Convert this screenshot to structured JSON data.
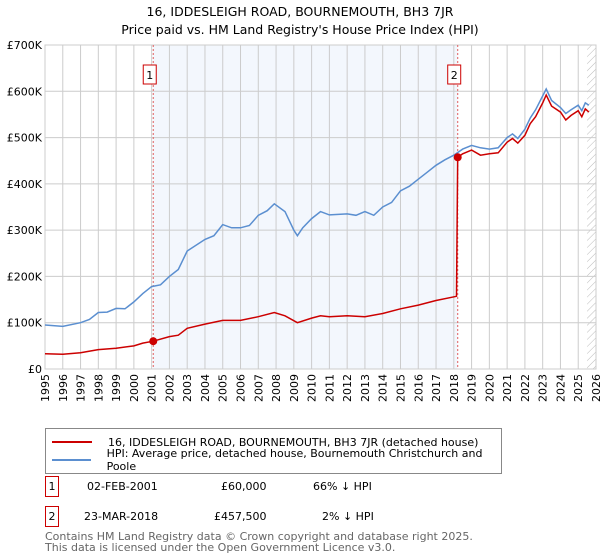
{
  "chart_data": {
    "type": "line",
    "title": "16, IDDESLEIGH ROAD, BOURNEMOUTH, BH3 7JR",
    "subtitle": "Price paid vs. HM Land Registry's House Price Index (HPI)",
    "xlim": [
      1995,
      2026
    ],
    "ylim": [
      0,
      700000
    ],
    "x_ticks": [
      "1995",
      "1996",
      "1997",
      "1998",
      "1999",
      "2000",
      "2001",
      "2002",
      "2003",
      "2004",
      "2005",
      "2006",
      "2007",
      "2008",
      "2009",
      "2010",
      "2011",
      "2012",
      "2013",
      "2014",
      "2015",
      "2016",
      "2017",
      "2018",
      "2019",
      "2020",
      "2021",
      "2022",
      "2023",
      "2024",
      "2025",
      "2026"
    ],
    "y_ticks": [
      {
        "v": 0,
        "label": "£0"
      },
      {
        "v": 100000,
        "label": "£100K"
      },
      {
        "v": 200000,
        "label": "£200K"
      },
      {
        "v": 300000,
        "label": "£300K"
      },
      {
        "v": 400000,
        "label": "£400K"
      },
      {
        "v": 500000,
        "label": "£500K"
      },
      {
        "v": 600000,
        "label": "£600K"
      },
      {
        "v": 700000,
        "label": "£700K"
      }
    ],
    "shaded_range": [
      2001.09,
      2018.22
    ],
    "forecast_hatch_from": 2025.5,
    "series": [
      {
        "name": "16, IDDESLEIGH ROAD, BOURNEMOUTH, BH3 7JR (detached house)",
        "color": "#cc0000",
        "points": [
          [
            1995,
            33000
          ],
          [
            1996,
            32000
          ],
          [
            1997,
            35000
          ],
          [
            1998,
            42000
          ],
          [
            1999,
            45000
          ],
          [
            2000,
            50000
          ],
          [
            2000.5,
            56000
          ],
          [
            2001.09,
            60000
          ],
          [
            2002,
            70000
          ],
          [
            2002.5,
            73000
          ],
          [
            2003,
            88000
          ],
          [
            2004,
            97000
          ],
          [
            2005,
            105000
          ],
          [
            2006,
            105000
          ],
          [
            2007,
            113000
          ],
          [
            2007.9,
            122000
          ],
          [
            2008.5,
            115000
          ],
          [
            2009.2,
            100000
          ],
          [
            2010,
            110000
          ],
          [
            2010.5,
            115000
          ],
          [
            2011,
            113000
          ],
          [
            2012,
            115000
          ],
          [
            2013,
            113000
          ],
          [
            2014,
            120000
          ],
          [
            2015,
            130000
          ],
          [
            2016,
            138000
          ],
          [
            2017,
            148000
          ],
          [
            2018.15,
            157000
          ],
          [
            2018.22,
            457500
          ],
          [
            2018.5,
            465000
          ],
          [
            2019,
            473000
          ],
          [
            2019.5,
            462000
          ],
          [
            2020,
            465000
          ],
          [
            2020.5,
            467000
          ],
          [
            2021,
            490000
          ],
          [
            2021.3,
            498000
          ],
          [
            2021.6,
            488000
          ],
          [
            2022,
            505000
          ],
          [
            2022.3,
            530000
          ],
          [
            2022.6,
            545000
          ],
          [
            2023,
            575000
          ],
          [
            2023.2,
            592000
          ],
          [
            2023.5,
            568000
          ],
          [
            2024,
            555000
          ],
          [
            2024.3,
            538000
          ],
          [
            2024.6,
            548000
          ],
          [
            2025,
            558000
          ],
          [
            2025.2,
            545000
          ],
          [
            2025.4,
            562000
          ],
          [
            2025.6,
            555000
          ]
        ]
      },
      {
        "name": "HPI: Average price, detached house, Bournemouth Christchurch and Poole",
        "color": "#5b8fd0",
        "points": [
          [
            1995,
            95000
          ],
          [
            1996,
            92000
          ],
          [
            1997,
            100000
          ],
          [
            1997.5,
            107000
          ],
          [
            1998,
            122000
          ],
          [
            1998.5,
            123000
          ],
          [
            1999,
            131000
          ],
          [
            1999.5,
            130000
          ],
          [
            2000,
            145000
          ],
          [
            2000.5,
            163000
          ],
          [
            2001,
            178000
          ],
          [
            2001.5,
            182000
          ],
          [
            2002,
            200000
          ],
          [
            2002.5,
            215000
          ],
          [
            2003,
            255000
          ],
          [
            2004,
            280000
          ],
          [
            2004.5,
            288000
          ],
          [
            2005,
            312000
          ],
          [
            2005.5,
            305000
          ],
          [
            2006,
            305000
          ],
          [
            2006.5,
            310000
          ],
          [
            2007,
            332000
          ],
          [
            2007.5,
            342000
          ],
          [
            2007.9,
            357000
          ],
          [
            2008.5,
            340000
          ],
          [
            2009,
            300000
          ],
          [
            2009.2,
            288000
          ],
          [
            2009.5,
            305000
          ],
          [
            2010,
            325000
          ],
          [
            2010.5,
            340000
          ],
          [
            2011,
            333000
          ],
          [
            2012,
            335000
          ],
          [
            2012.5,
            332000
          ],
          [
            2013,
            340000
          ],
          [
            2013.5,
            332000
          ],
          [
            2014,
            350000
          ],
          [
            2014.5,
            360000
          ],
          [
            2015,
            385000
          ],
          [
            2015.5,
            395000
          ],
          [
            2016,
            410000
          ],
          [
            2016.5,
            425000
          ],
          [
            2017,
            440000
          ],
          [
            2017.5,
            452000
          ],
          [
            2018,
            462000
          ],
          [
            2018.5,
            475000
          ],
          [
            2019,
            483000
          ],
          [
            2019.5,
            478000
          ],
          [
            2020,
            475000
          ],
          [
            2020.5,
            478000
          ],
          [
            2021,
            500000
          ],
          [
            2021.3,
            508000
          ],
          [
            2021.6,
            498000
          ],
          [
            2022,
            518000
          ],
          [
            2022.3,
            542000
          ],
          [
            2022.6,
            560000
          ],
          [
            2023,
            590000
          ],
          [
            2023.2,
            605000
          ],
          [
            2023.5,
            580000
          ],
          [
            2024,
            565000
          ],
          [
            2024.3,
            552000
          ],
          [
            2024.6,
            560000
          ],
          [
            2025,
            570000
          ],
          [
            2025.2,
            558000
          ],
          [
            2025.4,
            575000
          ],
          [
            2025.6,
            570000
          ]
        ]
      }
    ],
    "sales": [
      {
        "id": "1",
        "x": 2001.09,
        "y": 60000
      },
      {
        "id": "2",
        "x": 2018.22,
        "y": 457500
      }
    ]
  },
  "legend": {
    "property": "16, IDDESLEIGH ROAD, BOURNEMOUTH, BH3 7JR (detached house)",
    "hpi": "HPI: Average price, detached house, Bournemouth Christchurch and Poole"
  },
  "transactions": [
    {
      "id": "1",
      "date": "02-FEB-2001",
      "price": "£60,000",
      "hpi": "66% ↓ HPI"
    },
    {
      "id": "2",
      "date": "23-MAR-2018",
      "price": "£457,500",
      "hpi": "2% ↓ HPI"
    }
  ],
  "footer": [
    "Contains HM Land Registry data © Crown copyright and database right 2025.",
    "This data is licensed under the Open Government Licence v3.0."
  ]
}
